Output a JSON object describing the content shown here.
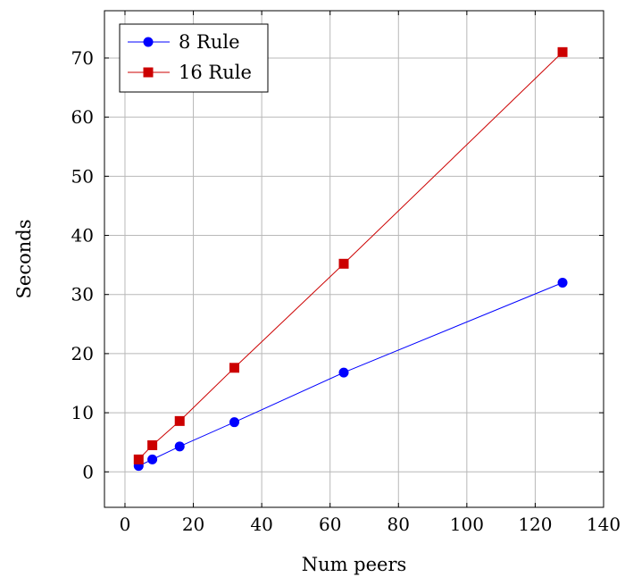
{
  "chart_data": {
    "type": "line",
    "title": "",
    "xlabel": "Num peers",
    "ylabel": "Seconds",
    "xlim": [
      -6,
      140
    ],
    "ylim": [
      -6,
      78
    ],
    "xticks": [
      0,
      20,
      40,
      60,
      80,
      100,
      120,
      140
    ],
    "yticks": [
      0,
      10,
      20,
      30,
      40,
      50,
      60,
      70
    ],
    "grid": true,
    "legend_position": "top-left",
    "series": [
      {
        "name": "8 Rule",
        "color": "#0000ff",
        "marker": "circle",
        "x": [
          4,
          8,
          16,
          32,
          64,
          128
        ],
        "y": [
          1.0,
          2.1,
          4.3,
          8.4,
          16.8,
          32.0
        ]
      },
      {
        "name": "16 Rule",
        "color": "#cc0000",
        "marker": "square",
        "x": [
          4,
          8,
          16,
          32,
          64,
          128
        ],
        "y": [
          2.1,
          4.5,
          8.6,
          17.6,
          35.2,
          71.0
        ]
      }
    ]
  }
}
